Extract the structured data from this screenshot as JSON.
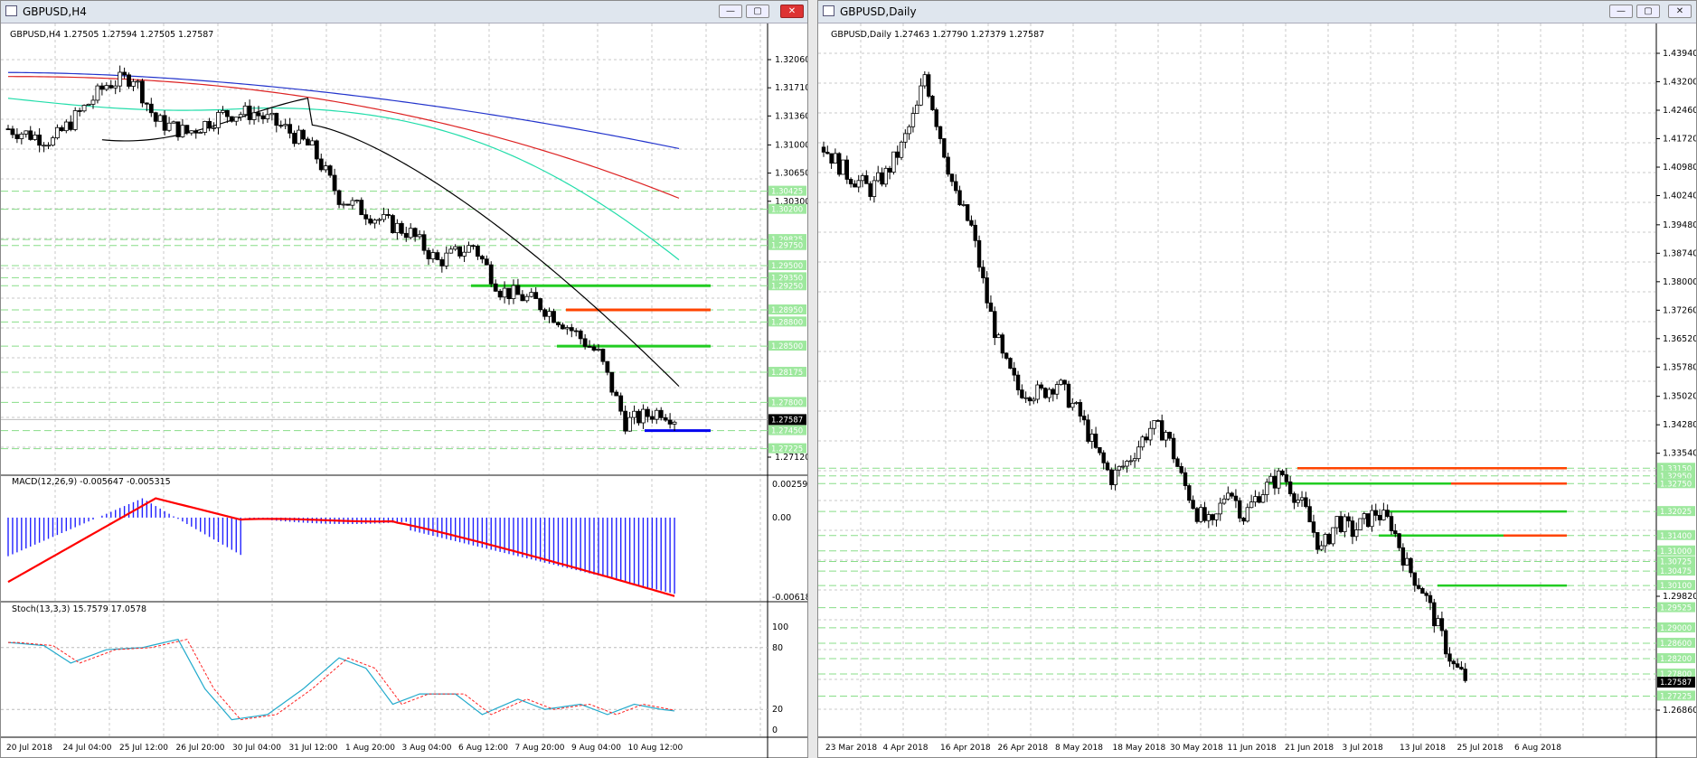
{
  "left_window": {
    "title": "GBPUSD,H4",
    "header": "GBPUSD,H4  1.27505 1.27594 1.27505 1.27587",
    "price_labels": [
      "1.32060",
      "1.31710",
      "1.31360",
      "1.31000",
      "1.30650",
      "1.30300",
      "1.27120"
    ],
    "level_labels": [
      "1.30425",
      "1.30200",
      "1.29825",
      "1.29750",
      "1.29500",
      "1.29350",
      "1.29250",
      "1.28950",
      "1.28800",
      "1.28500",
      "1.28175",
      "1.27800",
      "1.27450",
      "1.27225"
    ],
    "current_price": "1.27587",
    "macd_label": "MACD(12,26,9) -0.005647 -0.005315",
    "macd_scale": [
      "0.002592",
      "0.00",
      "-0.006184"
    ],
    "stoch_label": "Stoch(13,3,3) 15.7579 17.0578",
    "stoch_scale": [
      "100",
      "80",
      "20",
      "0"
    ],
    "time_labels": [
      "20 Jul 2018",
      "24 Jul 04:00",
      "25 Jul 12:00",
      "26 Jul 20:00",
      "30 Jul 04:00",
      "31 Jul 12:00",
      "1 Aug 20:00",
      "3 Aug 04:00",
      "6 Aug 12:00",
      "7 Aug 20:00",
      "9 Aug 04:00",
      "10 Aug 12:00"
    ]
  },
  "right_window": {
    "title": "GBPUSD,Daily",
    "header": "GBPUSD,Daily  1.27463 1.27790 1.27379 1.27587",
    "price_labels": [
      "1.43940",
      "1.43200",
      "1.42460",
      "1.41720",
      "1.40980",
      "1.40240",
      "1.39480",
      "1.38740",
      "1.38000",
      "1.37260",
      "1.36520",
      "1.35780",
      "1.35020",
      "1.34280",
      "1.33540",
      "1.29820",
      "1.26860"
    ],
    "level_labels": [
      "1.33150",
      "1.32950",
      "1.32750",
      "1.32025",
      "1.31400",
      "1.31000",
      "1.30725",
      "1.30475",
      "1.30100",
      "1.29525",
      "1.29000",
      "1.28600",
      "1.28200",
      "1.27800",
      "1.27225"
    ],
    "current_price": "1.27587",
    "time_labels": [
      "23 Mar 2018",
      "4 Apr 2018",
      "16 Apr 2018",
      "26 Apr 2018",
      "8 May 2018",
      "18 May 2018",
      "30 May 2018",
      "11 Jun 2018",
      "21 Jun 2018",
      "3 Jul 2018",
      "13 Jul 2018",
      "25 Jul 2018",
      "6 Aug 2018"
    ]
  },
  "colors": {
    "green": "#22cc22",
    "red": "#ff4400",
    "blue": "#0000ee",
    "ma_blue": "#2233cc",
    "ma_red": "#dd2222",
    "ma_teal": "#22ddaa",
    "ma_black": "#000000",
    "macd_hist": "#2222ff",
    "macd_signal": "#ff0000",
    "stoch_main": "#22aacc",
    "stoch_signal": "#ff2222"
  },
  "icons": {
    "minimize": "minimize-icon",
    "maximize": "maximize-icon",
    "close": "close-icon"
  }
}
